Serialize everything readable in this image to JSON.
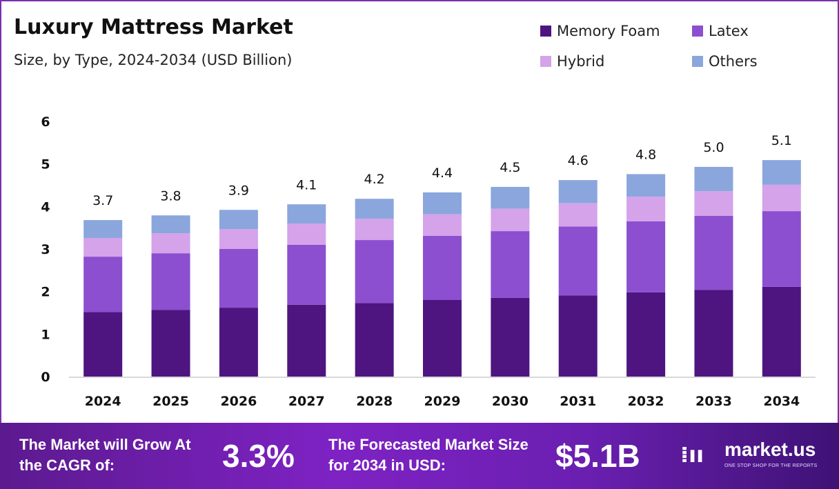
{
  "chart_data": {
    "type": "bar",
    "stacked": true,
    "title": "Luxury Mattress Market",
    "subtitle": "Size, by Type, 2024-2034 (USD Billion)",
    "categories": [
      "2024",
      "2025",
      "2026",
      "2027",
      "2028",
      "2029",
      "2030",
      "2031",
      "2032",
      "2033",
      "2034"
    ],
    "series": [
      {
        "name": "Memory Foam",
        "color": "#4e1581",
        "values": [
          1.52,
          1.57,
          1.62,
          1.69,
          1.73,
          1.8,
          1.85,
          1.91,
          1.98,
          2.04,
          2.11
        ]
      },
      {
        "name": "Latex",
        "color": "#8c4fcf",
        "values": [
          1.3,
          1.33,
          1.38,
          1.41,
          1.48,
          1.51,
          1.57,
          1.62,
          1.67,
          1.74,
          1.78
        ]
      },
      {
        "name": "Hybrid",
        "color": "#d4a3ea",
        "values": [
          0.44,
          0.47,
          0.47,
          0.5,
          0.5,
          0.51,
          0.53,
          0.55,
          0.58,
          0.58,
          0.62
        ]
      },
      {
        "name": "Others",
        "color": "#8aa6dc",
        "values": [
          0.42,
          0.42,
          0.45,
          0.45,
          0.47,
          0.51,
          0.51,
          0.54,
          0.53,
          0.57,
          0.58
        ]
      }
    ],
    "totals": [
      "3.7",
      "3.8",
      "3.9",
      "4.1",
      "4.2",
      "4.4",
      "4.5",
      "4.6",
      "4.8",
      "5.0",
      "5.1"
    ],
    "yticks": [
      "0",
      "1",
      "2",
      "3",
      "4",
      "5",
      "6"
    ],
    "ylim": [
      0,
      6
    ],
    "grid": false,
    "legend": "top-right"
  },
  "footer": {
    "cagr_label": "The Market will Grow At the CAGR of:",
    "cagr_value": "3.3%",
    "forecast_label": "The Forecasted Market Size for 2034 in USD:",
    "forecast_value": "$5.1B",
    "logo_name": "market.us",
    "logo_tagline": "ONE STOP SHOP FOR THE REPORTS"
  }
}
